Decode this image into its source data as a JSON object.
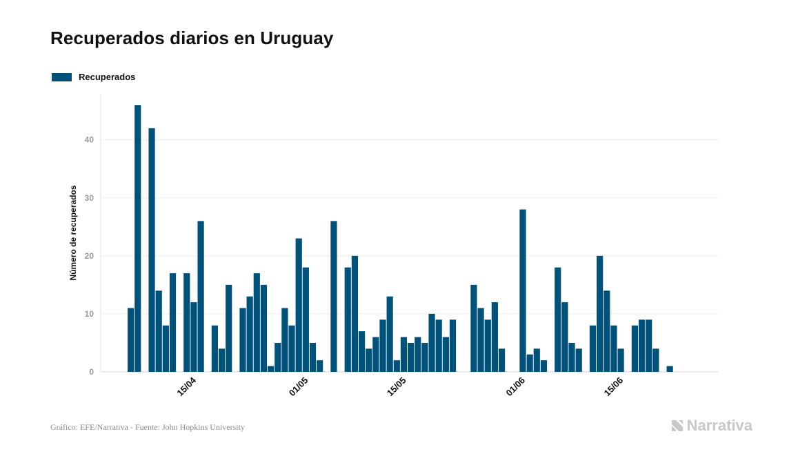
{
  "title": "Recuperados diarios en Uruguay",
  "legend": {
    "label": "Recuperados",
    "color": "#00527b"
  },
  "footer": {
    "source": "Gráfico: EFE/Narrativa - Fuente: John Hopkins University",
    "brand": "Narrativa"
  },
  "chart_data": {
    "type": "bar",
    "ylabel": "Número de recuperados",
    "xlabel": "",
    "ylim": [
      0,
      49
    ],
    "yticks": [
      0,
      10,
      20,
      30,
      40
    ],
    "grid": true,
    "legend_position": "top-left",
    "x_tick_labels": [
      {
        "label": "15/04",
        "index": 9
      },
      {
        "label": "01/05",
        "index": 25
      },
      {
        "label": "15/05",
        "index": 39
      },
      {
        "label": "01/06",
        "index": 56
      },
      {
        "label": "15/06",
        "index": 70
      }
    ],
    "series": [
      {
        "name": "Recuperados",
        "color": "#00527b",
        "values": [
          11,
          46,
          0,
          42,
          14,
          8,
          17,
          0,
          17,
          12,
          26,
          0,
          8,
          4,
          15,
          0,
          11,
          13,
          17,
          15,
          1,
          5,
          11,
          8,
          23,
          18,
          5,
          2,
          0,
          26,
          0,
          18,
          20,
          7,
          4,
          6,
          9,
          13,
          2,
          6,
          5,
          6,
          5,
          10,
          9,
          6,
          9,
          0,
          0,
          15,
          11,
          9,
          12,
          4,
          0,
          0,
          28,
          3,
          4,
          2,
          0,
          18,
          12,
          5,
          4,
          0,
          8,
          20,
          14,
          8,
          4,
          0,
          8,
          9,
          9,
          4,
          0,
          1,
          0,
          0,
          0,
          0,
          0,
          0
        ]
      }
    ]
  }
}
